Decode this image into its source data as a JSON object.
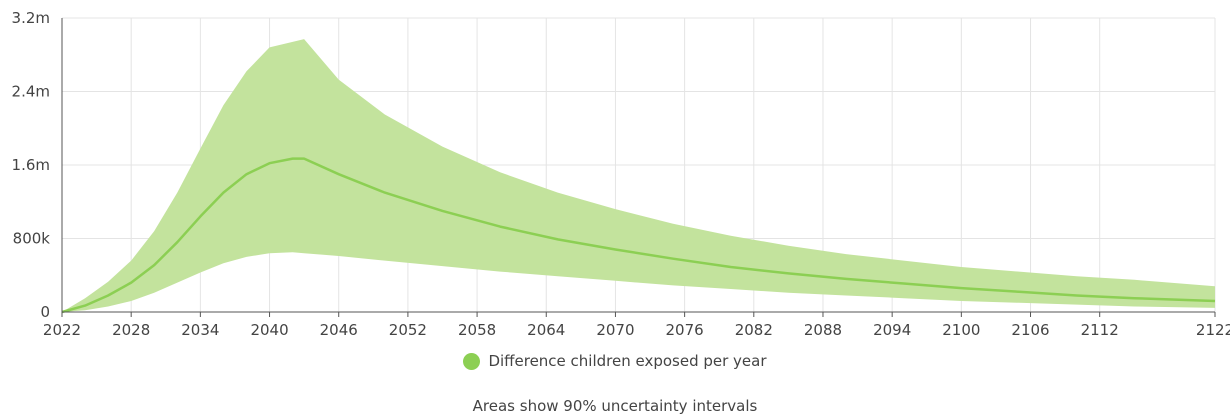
{
  "chart_data": {
    "type": "area",
    "title": "",
    "xlabel": "",
    "ylabel": "",
    "xlim": [
      2022,
      2122
    ],
    "ylim": [
      0,
      3200000
    ],
    "x_ticks": [
      2022,
      2028,
      2034,
      2040,
      2046,
      2052,
      2058,
      2064,
      2070,
      2076,
      2082,
      2088,
      2094,
      2100,
      2106,
      2112,
      2122
    ],
    "x_tick_labels": [
      "2022",
      "2028",
      "2034",
      "2040",
      "2046",
      "2052",
      "2058",
      "2064",
      "2070",
      "2076",
      "2082",
      "2088",
      "2094",
      "2100",
      "2106",
      "2112",
      "2122"
    ],
    "y_ticks": [
      0,
      800000,
      1600000,
      2400000,
      3200000
    ],
    "y_tick_labels": [
      "0",
      "800k",
      "1.6m",
      "2.4m",
      "3.2m"
    ],
    "grid": true,
    "legend_position": "bottom",
    "colors": {
      "line": "#8ccf53",
      "band": "#c3e39d",
      "grid": "#e4e4e4",
      "axis": "#555555"
    },
    "series": [
      {
        "name": "Difference children exposed per year",
        "x": [
          2022,
          2024,
          2026,
          2028,
          2030,
          2032,
          2034,
          2036,
          2038,
          2040,
          2042,
          2043,
          2046,
          2050,
          2055,
          2060,
          2065,
          2070,
          2075,
          2080,
          2085,
          2090,
          2095,
          2100,
          2105,
          2110,
          2115,
          2122
        ],
        "values": [
          0,
          70000,
          180000,
          320000,
          510000,
          760000,
          1040000,
          1300000,
          1500000,
          1620000,
          1670000,
          1670000,
          1500000,
          1300000,
          1100000,
          930000,
          790000,
          680000,
          580000,
          490000,
          420000,
          360000,
          310000,
          260000,
          220000,
          180000,
          150000,
          120000
        ],
        "lower": [
          0,
          20000,
          60000,
          120000,
          210000,
          320000,
          430000,
          530000,
          600000,
          640000,
          650000,
          640000,
          610000,
          560000,
          500000,
          440000,
          390000,
          340000,
          290000,
          250000,
          210000,
          180000,
          150000,
          120000,
          100000,
          80000,
          60000,
          45000
        ],
        "upper": [
          0,
          150000,
          330000,
          560000,
          880000,
          1300000,
          1780000,
          2250000,
          2620000,
          2880000,
          2940000,
          2970000,
          2530000,
          2150000,
          1800000,
          1520000,
          1300000,
          1120000,
          960000,
          830000,
          720000,
          630000,
          560000,
          490000,
          440000,
          390000,
          350000,
          280000
        ]
      }
    ],
    "note": "Areas show 90% uncertainty intervals"
  }
}
